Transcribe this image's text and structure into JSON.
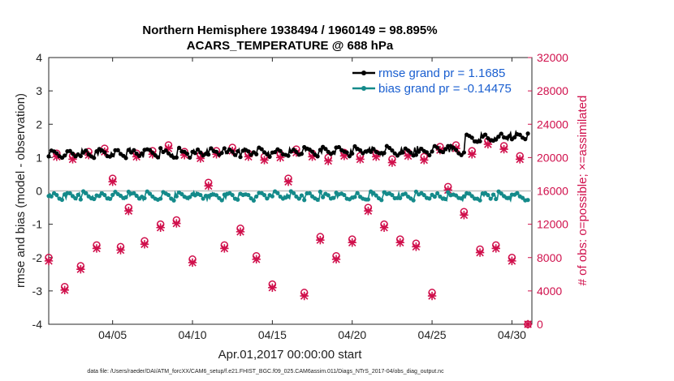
{
  "chart_data": {
    "type": "line",
    "title_line1": "Northern Hemisphere 1938494 / 1960149 = 98.895%",
    "title_line2": "ACARS_TEMPERATURE @ 688 hPa",
    "xlabel": "Apr.01,2017 00:00:00 start",
    "ylabel_left": "rmse and bias (model - observation)",
    "ylabel_right": "# of obs: o=possible; ×=assimilated",
    "footer": "data file: /Users/raeder/DAI/ATM_forcXX/CAM6_setup/f.e21.FHIST_BGC.f09_025.CAM6assim.011/Diags_NTrS_2017-04/obs_diag_output.nc",
    "xlim": [
      1.0,
      31.25
    ],
    "ylim_left": [
      -4,
      4
    ],
    "ylim_right": [
      0,
      32000
    ],
    "x_ticks": [
      {
        "value": 5,
        "label": "04/05"
      },
      {
        "value": 10,
        "label": "04/10"
      },
      {
        "value": 15,
        "label": "04/15"
      },
      {
        "value": 20,
        "label": "04/20"
      },
      {
        "value": 25,
        "label": "04/25"
      },
      {
        "value": 30,
        "label": "04/30"
      }
    ],
    "y_left_ticks": [
      "4",
      "3",
      "2",
      "1",
      "0",
      "-1",
      "-2",
      "-3",
      "-4"
    ],
    "y_right_ticks": [
      "32000",
      "28000",
      "24000",
      "20000",
      "16000",
      "12000",
      "8000",
      "4000",
      "0"
    ],
    "legend": [
      {
        "label": "rmse grand pr = 1.1685",
        "color": "#000000"
      },
      {
        "label": "bias grand pr = -0.14475",
        "color": "#148a8a"
      }
    ],
    "colors": {
      "rmse": "#000000",
      "bias": "#148a8a",
      "obs": "#d0104c",
      "zero": "#bfbfbf"
    },
    "series": [
      {
        "name": "rmse",
        "base": 1.17,
        "amp": 0.13,
        "drift": 0.004,
        "period_days": 1.0
      },
      {
        "name": "bias",
        "base": -0.15,
        "amp": 0.12,
        "drift": 0.0,
        "period_days": 1.0
      },
      {
        "name": "obs_count",
        "times": [
          1.0,
          1.5,
          2.0,
          2.5,
          3.0,
          3.5,
          4.0,
          4.5,
          5.0,
          5.5,
          6.0,
          6.5,
          7.0,
          7.5,
          8.0,
          8.5,
          9.0,
          9.5,
          10.0,
          10.5,
          11.0,
          11.5,
          12.0,
          12.5,
          13.0,
          13.5,
          14.0,
          14.5,
          15.0,
          15.5,
          16.0,
          16.5,
          17.0,
          17.5,
          18.0,
          18.5,
          19.0,
          19.5,
          20.0,
          20.5,
          21.0,
          21.5,
          22.0,
          22.5,
          23.0,
          23.5,
          24.0,
          24.5,
          25.0,
          25.5,
          26.0,
          26.5,
          27.0,
          27.5,
          28.0,
          28.5,
          29.0,
          29.5,
          30.0,
          30.5,
          31.0
        ],
        "values": [
          8000,
          20500,
          4500,
          20200,
          7000,
          20700,
          9500,
          21100,
          17500,
          9300,
          14000,
          20500,
          10000,
          20800,
          12000,
          21500,
          12500,
          20700,
          7800,
          20300,
          17000,
          20800,
          9500,
          21200,
          11500,
          20500,
          8200,
          20100,
          4800,
          20400,
          17500,
          21000,
          3800,
          20500,
          10500,
          20000,
          8200,
          20600,
          10200,
          20200,
          14000,
          20500,
          12000,
          19800,
          10200,
          20600,
          9700,
          20100,
          3800,
          21300,
          16500,
          21500,
          13500,
          20800,
          9000,
          22000,
          9500,
          21400,
          8000,
          20200,
          0
        ]
      },
      {
        "name": "obs_assim_offset",
        "value": -400
      }
    ]
  }
}
